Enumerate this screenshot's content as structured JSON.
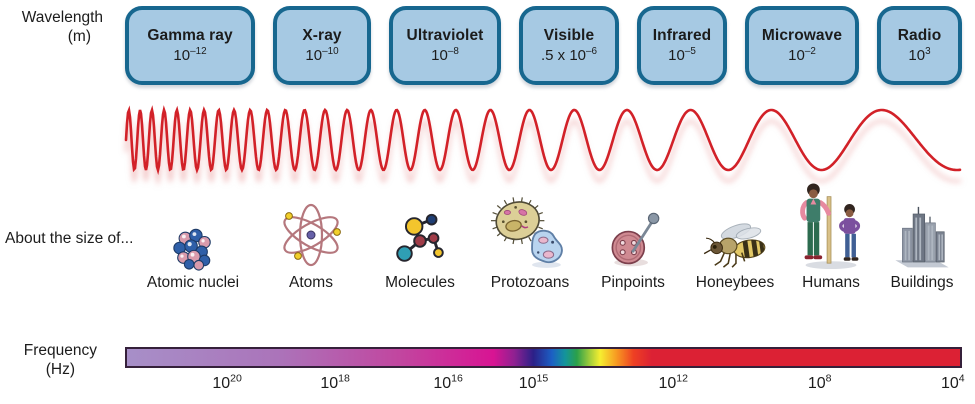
{
  "wavelength_axis": {
    "label_line1": "Wavelength",
    "label_line2": "(m)",
    "bands": [
      {
        "name": "Gamma ray",
        "prefix": "",
        "base": "10",
        "exp": "–12"
      },
      {
        "name": "X-ray",
        "prefix": "",
        "base": "10",
        "exp": "–10"
      },
      {
        "name": "Ultraviolet",
        "prefix": "",
        "base": "10",
        "exp": "–8"
      },
      {
        "name": "Visible",
        "prefix": ".5 x ",
        "base": "10",
        "exp": "–6"
      },
      {
        "name": "Infrared",
        "prefix": "",
        "base": "10",
        "exp": "–5"
      },
      {
        "name": "Microwave",
        "prefix": "",
        "base": "10",
        "exp": "–2"
      },
      {
        "name": "Radio",
        "prefix": "",
        "base": "10",
        "exp": "3"
      }
    ]
  },
  "size_row": {
    "label": "About the size of...",
    "items": [
      {
        "label": "Atomic nuclei",
        "icon": "atomic-nucleus-icon"
      },
      {
        "label": "Atoms",
        "icon": "atom-icon"
      },
      {
        "label": "Molecules",
        "icon": "molecule-icon"
      },
      {
        "label": "Protozoans",
        "icon": "protozoan-icon"
      },
      {
        "label": "Pinpoints",
        "icon": "pinpoint-icon"
      },
      {
        "label": "Honeybees",
        "icon": "honeybee-icon"
      },
      {
        "label": "Humans",
        "icon": "humans-icon"
      },
      {
        "label": "Buildings",
        "icon": "buildings-icon"
      }
    ]
  },
  "frequency_axis": {
    "label_line1": "Frequency",
    "label_line2": "(Hz)",
    "ticks": [
      {
        "base": "10",
        "exp": "20",
        "pos": 12.2
      },
      {
        "base": "10",
        "exp": "18",
        "pos": 25.1
      },
      {
        "base": "10",
        "exp": "16",
        "pos": 38.6
      },
      {
        "base": "10",
        "exp": "15",
        "pos": 48.8
      },
      {
        "base": "10",
        "exp": "12",
        "pos": 65.5
      },
      {
        "base": "10",
        "exp": "8",
        "pos": 83.0
      },
      {
        "base": "10",
        "exp": "4",
        "pos": 98.9
      }
    ],
    "gradient_stops": [
      {
        "pos": 0,
        "color": "#a78fc8"
      },
      {
        "pos": 18,
        "color": "#ab74ba"
      },
      {
        "pos": 33,
        "color": "#c2459f"
      },
      {
        "pos": 44,
        "color": "#d81493"
      },
      {
        "pos": 46.5,
        "color": "#8f2191"
      },
      {
        "pos": 48.8,
        "color": "#2b2088"
      },
      {
        "pos": 51,
        "color": "#1c5fc4"
      },
      {
        "pos": 52.6,
        "color": "#13949b"
      },
      {
        "pos": 54,
        "color": "#2ba04a"
      },
      {
        "pos": 55.5,
        "color": "#9dcb3b"
      },
      {
        "pos": 56.8,
        "color": "#f6ee30"
      },
      {
        "pos": 58.8,
        "color": "#f79822"
      },
      {
        "pos": 60.8,
        "color": "#ee4023"
      },
      {
        "pos": 63,
        "color": "#dc2134"
      },
      {
        "pos": 100,
        "color": "#dc2134"
      }
    ]
  },
  "colors": {
    "band_fill": "#a6c9e3",
    "band_border": "#17678f",
    "wave": "#d22128",
    "bar_border": "#35203a",
    "text": "#1c1c1c"
  }
}
